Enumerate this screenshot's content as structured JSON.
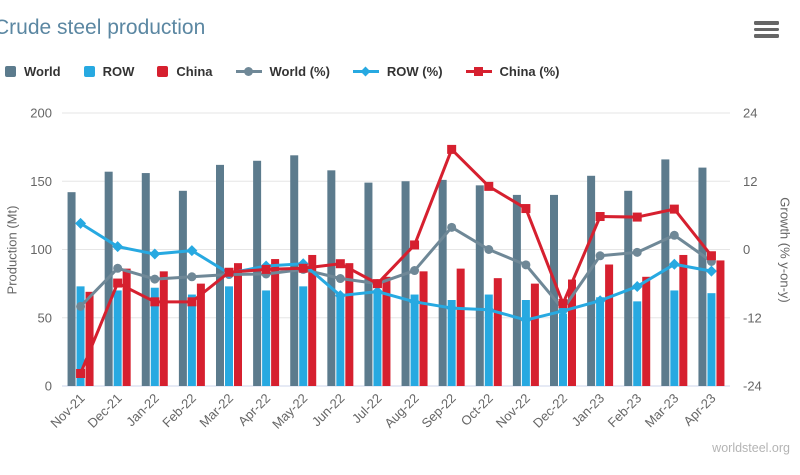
{
  "header": {
    "title": "Crude steel production"
  },
  "watermark": "worldsteel.org",
  "colors": {
    "title": "#5b87a2",
    "world_bar": "#5c7b8d",
    "row_blue": "#27a9e1",
    "china_red": "#d6202f",
    "world_line": "#6f8897",
    "gridline": "#e6e6e6",
    "axis_line": "#ccd6eb",
    "tick_text": "#666666",
    "legend_text": "#333333",
    "watermark_text": "#b4b4b4",
    "menu_icon": "#666666"
  },
  "chart_data": {
    "type": "combo (column + line)",
    "grid": true,
    "legend_position": "top-left",
    "categories": [
      "Nov-21",
      "Dec-21",
      "Jan-22",
      "Feb-22",
      "Mar-22",
      "Apr-22",
      "May-22",
      "Jun-22",
      "Jul-22",
      "Aug-22",
      "Sep-22",
      "Oct-22",
      "Nov-22",
      "Dec-22",
      "Jan-23",
      "Feb-23",
      "Mar-23",
      "Apr-23"
    ],
    "left_axis": {
      "label": "Production (Mt)",
      "range": [
        0,
        200
      ],
      "ticks": [
        0,
        50,
        100,
        150,
        200
      ]
    },
    "right_axis": {
      "label": "Growth (% y-on-y)",
      "range": [
        -24,
        24
      ],
      "ticks": [
        -24,
        -12,
        0,
        12,
        24
      ]
    },
    "series": [
      {
        "name": "World",
        "type": "column",
        "axis": "left",
        "color": "#5c7b8d",
        "values": [
          142,
          157,
          156,
          143,
          162,
          165,
          169,
          158,
          149,
          150,
          151,
          147,
          140,
          140,
          154,
          143,
          166,
          160
        ]
      },
      {
        "name": "ROW",
        "type": "column",
        "axis": "left",
        "color": "#27a9e1",
        "values": [
          73,
          70,
          72,
          67,
          73,
          70,
          73,
          67,
          68,
          67,
          63,
          67,
          63,
          53,
          65,
          62,
          70,
          68
        ]
      },
      {
        "name": "China",
        "type": "column",
        "axis": "left",
        "color": "#d6202f",
        "values": [
          69,
          86,
          84,
          75,
          90,
          93,
          96,
          90,
          80,
          84,
          86,
          79,
          75,
          78,
          89,
          80,
          96,
          92
        ]
      },
      {
        "name": "World (%)",
        "type": "line",
        "marker": "circle",
        "axis": "right",
        "color": "#6f8897",
        "values": [
          -10,
          -3.3,
          -5.2,
          -4.8,
          -4.4,
          -4.3,
          -3.5,
          -5.1,
          -6,
          -3.7,
          3.9,
          0,
          -2.7,
          -10.5,
          -1.1,
          -0.5,
          2.5,
          -2.1
        ]
      },
      {
        "name": "ROW (%)",
        "type": "line",
        "marker": "diamond",
        "axis": "right",
        "color": "#27a9e1",
        "values": [
          4.6,
          0.5,
          -0.8,
          -0.2,
          -4.2,
          -2.9,
          -2.5,
          -8.1,
          -7.4,
          -9.2,
          -10.3,
          -10.6,
          -12.4,
          -10.8,
          -9,
          -6.5,
          -2.6,
          -3.8
        ]
      },
      {
        "name": "China (%)",
        "type": "line",
        "marker": "square",
        "axis": "right",
        "color": "#d6202f",
        "values": [
          -21.8,
          -5.9,
          -9.2,
          -9.2,
          -4,
          -3.5,
          -3.3,
          -2.5,
          -6,
          0.8,
          17.6,
          11.1,
          7.2,
          -9.5,
          5.8,
          5.7,
          7.1,
          -1.1
        ]
      }
    ]
  }
}
